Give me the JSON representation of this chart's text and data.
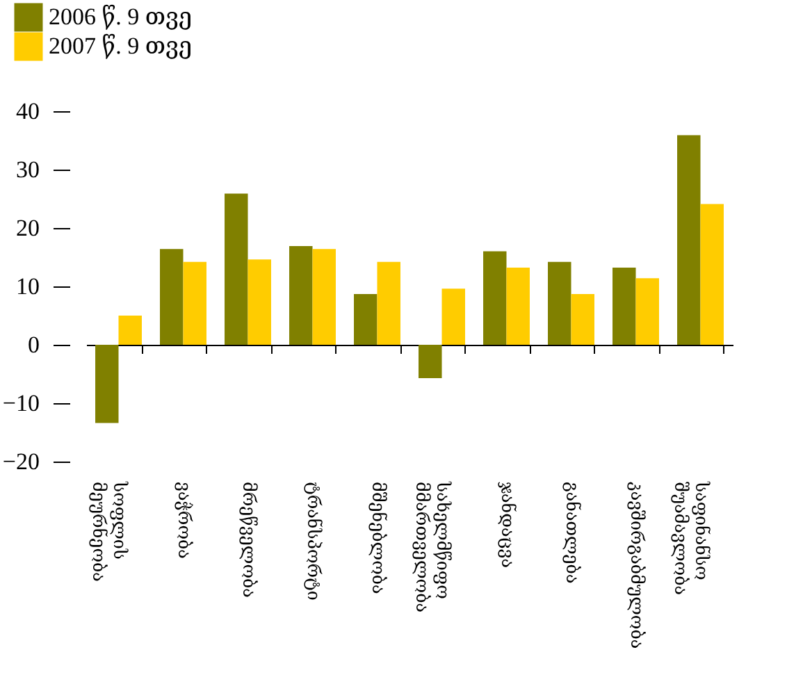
{
  "chart_data": {
    "type": "bar",
    "categories": [
      "სოფლის მეურნეობა",
      "ვაჭრობა",
      "მრეწველობა",
      "ტრანსპორტი",
      "მშენებლობა",
      "სახელმწიფო მმართველობა",
      "ჯანდაცვა",
      "განათლება",
      "კავშირგაბმულობა",
      "საფინანსო შუამავლობა"
    ],
    "series": [
      {
        "name": "2006 წ. 9 თვე",
        "color": "#808000",
        "values": [
          -13.4,
          16.4,
          25.9,
          16.9,
          8.7,
          -5.7,
          16.0,
          14.2,
          13.2,
          35.9
        ]
      },
      {
        "name": "2007 წ. 9 თვე",
        "color": "#ffcc00",
        "values": [
          5.0,
          14.2,
          14.6,
          16.4,
          14.2,
          9.6,
          13.2,
          8.7,
          11.4,
          24.1
        ]
      }
    ],
    "ylim": [
      -20,
      40
    ],
    "yticks": [
      -20,
      -10,
      0,
      10,
      20,
      30,
      40
    ],
    "legend": "top left"
  }
}
